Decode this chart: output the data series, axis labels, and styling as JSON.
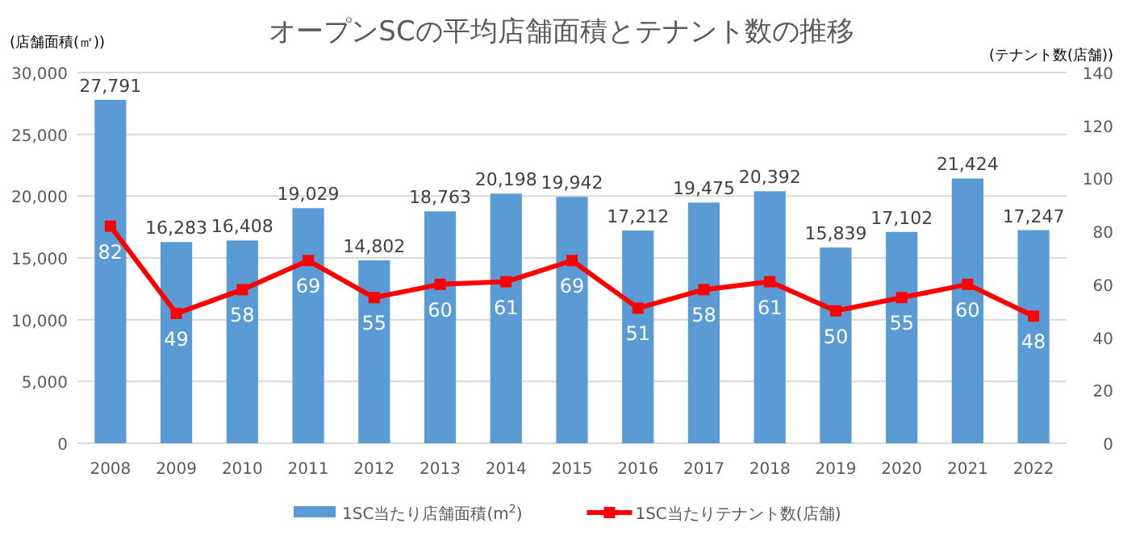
{
  "chart_data": {
    "type": "bar",
    "title": "オープンSCの平均店舗面積とテナント数の推移",
    "ylabel": "(店舗面積(㎡))",
    "y2label": "(テナント数(店舗))",
    "categories": [
      "2008",
      "2009",
      "2010",
      "2011",
      "2012",
      "2013",
      "2014",
      "2015",
      "2016",
      "2017",
      "2018",
      "2019",
      "2020",
      "2021",
      "2022"
    ],
    "series": [
      {
        "name": "1SC当たり店舗面積(m$^{2}$)",
        "color": "#5b9bd5",
        "values": [
          27791,
          16283,
          16408,
          19029,
          14802,
          18763,
          20198,
          19942,
          17212,
          19475,
          20392,
          15839,
          17102,
          21424,
          17247
        ],
        "value_labels": [
          "27,791",
          "16,283",
          "16,408",
          "19,029",
          "14,802",
          "18,763",
          "20,198",
          "19,942",
          "17,212",
          "19,475",
          "20,392",
          "15,839",
          "17,102",
          "21,424",
          "17,247"
        ]
      },
      {
        "name": "1SC当たりテナント数(店舗)",
        "type": "line",
        "axis": "y2",
        "color": "#ff0000",
        "marker": "square",
        "values": [
          82,
          49,
          58,
          69,
          55,
          60,
          61,
          69,
          51,
          58,
          61,
          50,
          55,
          60,
          48
        ]
      }
    ],
    "ylim": [
      0,
      30000
    ],
    "yticks": [
      {
        "value": 0,
        "label": "0"
      },
      {
        "value": 5000,
        "label": "5,000"
      },
      {
        "value": 10000,
        "label": "10,000"
      },
      {
        "value": 15000,
        "label": "15,000"
      },
      {
        "value": 20000,
        "label": "20,000"
      },
      {
        "value": 25000,
        "label": "25,000"
      },
      {
        "value": 30000,
        "label": "30,000"
      }
    ],
    "y2lim": [
      0,
      140
    ],
    "y2ticks": [
      0,
      20,
      40,
      60,
      80,
      100,
      120,
      140
    ],
    "grid": "y",
    "legend": "bottom",
    "data_labels": true
  }
}
